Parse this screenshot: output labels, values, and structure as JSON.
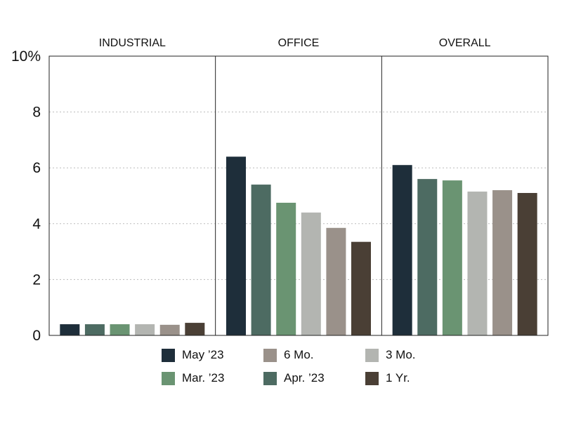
{
  "chart_data": {
    "type": "bar",
    "panels": [
      "INDUSTRIAL",
      "OFFICE",
      "OVERALL"
    ],
    "ylim": [
      0,
      10
    ],
    "yticks": [
      0,
      2,
      4,
      6,
      8,
      10
    ],
    "ytick_labels": [
      "0",
      "2",
      "4",
      "6",
      "8",
      "10%"
    ],
    "grid": true,
    "legend_position": "bottom",
    "series": [
      {
        "name": "May ’23",
        "color": "#1e2e3a",
        "values": [
          0.4,
          6.4,
          6.1
        ]
      },
      {
        "name": "Apr. ’23",
        "color": "#4d6b62",
        "values": [
          0.4,
          5.4,
          5.6
        ]
      },
      {
        "name": "Mar. ’23",
        "color": "#6a9472",
        "values": [
          0.4,
          4.75,
          5.55
        ]
      },
      {
        "name": "3 Mo.",
        "color": "#b3b5b1",
        "values": [
          0.4,
          4.4,
          5.15
        ]
      },
      {
        "name": "6 Mo.",
        "color": "#9a918a",
        "values": [
          0.38,
          3.85,
          5.2
        ]
      },
      {
        "name": "1 Yr.",
        "color": "#4a3f35",
        "values": [
          0.45,
          3.35,
          5.1
        ]
      }
    ]
  },
  "legend_order": [
    0,
    2,
    4,
    1,
    3,
    5
  ]
}
